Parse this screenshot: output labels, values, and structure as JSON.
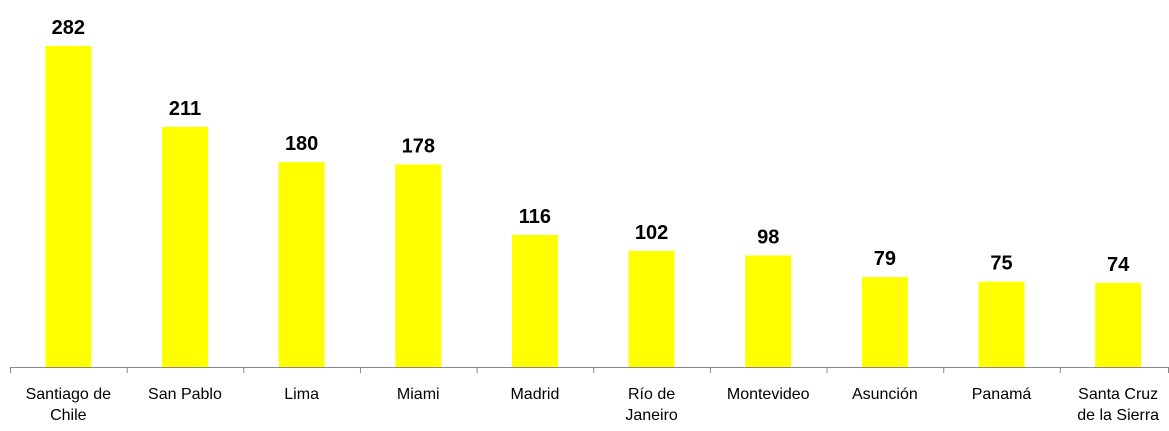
{
  "chart_data": {
    "type": "bar",
    "categories": [
      "Santiago de Chile",
      "San Pablo",
      "Lima",
      "Miami",
      "Madrid",
      "Río de Janeiro",
      "Montevideo",
      "Asunción",
      "Panamá",
      "Santa Cruz de la Sierra"
    ],
    "values": [
      282,
      211,
      180,
      178,
      116,
      102,
      98,
      79,
      75,
      74
    ],
    "color": "#ffff00"
  }
}
